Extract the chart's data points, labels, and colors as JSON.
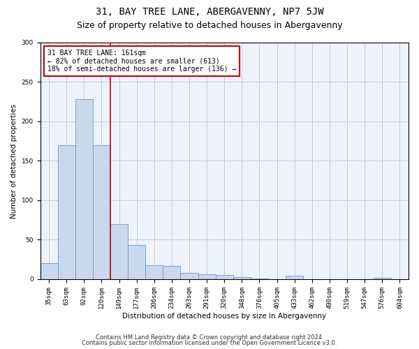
{
  "title": "31, BAY TREE LANE, ABERGAVENNY, NP7 5JW",
  "subtitle": "Size of property relative to detached houses in Abergavenny",
  "xlabel": "Distribution of detached houses by size in Abergavenny",
  "ylabel": "Number of detached properties",
  "categories": [
    "35sqm",
    "63sqm",
    "92sqm",
    "120sqm",
    "149sqm",
    "177sqm",
    "206sqm",
    "234sqm",
    "263sqm",
    "291sqm",
    "320sqm",
    "348sqm",
    "376sqm",
    "405sqm",
    "433sqm",
    "462sqm",
    "490sqm",
    "519sqm",
    "547sqm",
    "576sqm",
    "604sqm"
  ],
  "values": [
    20,
    170,
    228,
    170,
    70,
    43,
    18,
    17,
    8,
    6,
    5,
    3,
    1,
    0,
    4,
    0,
    0,
    0,
    0,
    2,
    0
  ],
  "bar_color": "#c9d9ed",
  "bar_edge_color": "#6699cc",
  "property_line_index": 4,
  "property_line_color": "#cc0000",
  "annotation_text": "31 BAY TREE LANE: 161sqm\n← 82% of detached houses are smaller (613)\n18% of semi-detached houses are larger (136) →",
  "annotation_box_color": "#ffffff",
  "annotation_box_edge": "#cc0000",
  "ylim": [
    0,
    300
  ],
  "yticks": [
    0,
    50,
    100,
    150,
    200,
    250,
    300
  ],
  "footer1": "Contains HM Land Registry data © Crown copyright and database right 2024.",
  "footer2": "Contains public sector information licensed under the Open Government Licence v3.0.",
  "plot_bg_color": "#eef2fa",
  "title_fontsize": 10,
  "subtitle_fontsize": 9,
  "axis_label_fontsize": 7.5,
  "tick_fontsize": 6.5,
  "annotation_fontsize": 7,
  "footer_fontsize": 6
}
